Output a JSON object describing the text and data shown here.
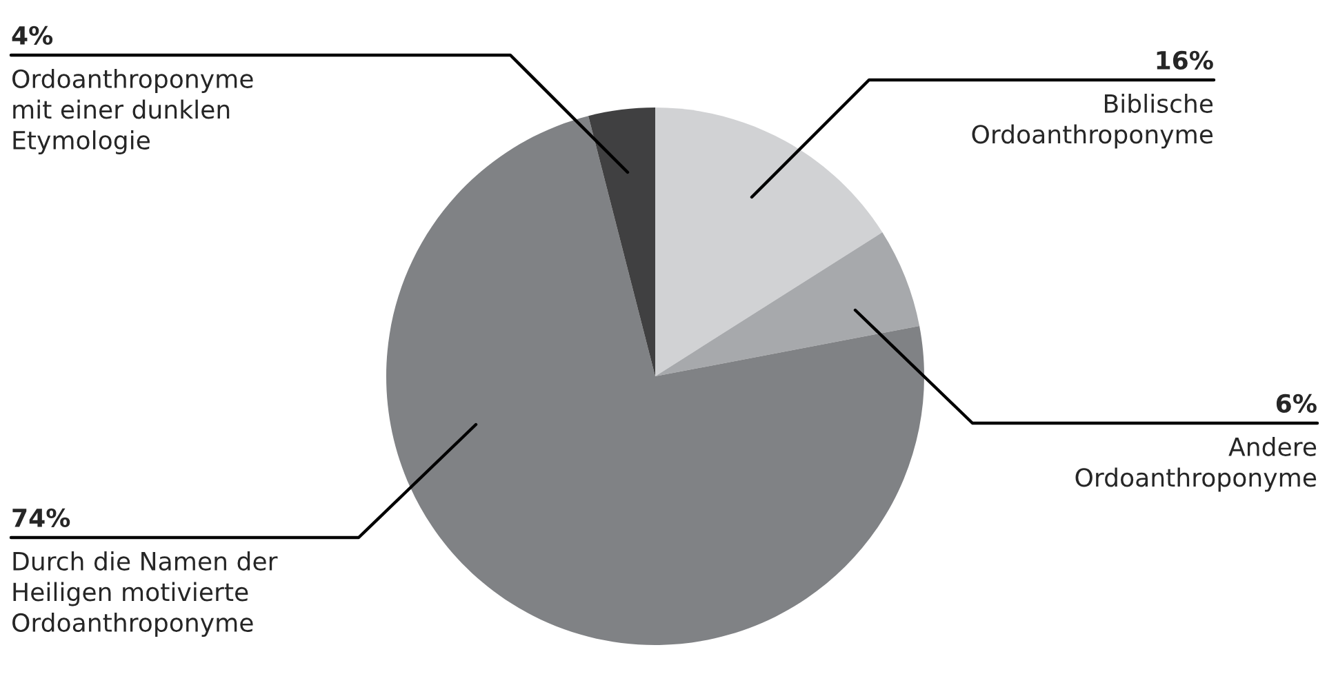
{
  "chart_data": {
    "type": "pie",
    "categories": [
      "Biblische\nOrdoanthroponyme",
      "Andere\nOrdoanthroponyme",
      "Durch die Namen der\nHeiligen motivierte\nOrdoanthroponyme",
      "Ordoanthroponyme\nmit einer dunklen\nEtymologie"
    ],
    "values": [
      16,
      6,
      74,
      4
    ],
    "value_labels": [
      "16%",
      "6%",
      "74%",
      "4%"
    ],
    "colors": [
      "#d1d2d4",
      "#a7a9ac",
      "#808285",
      "#404041"
    ]
  }
}
